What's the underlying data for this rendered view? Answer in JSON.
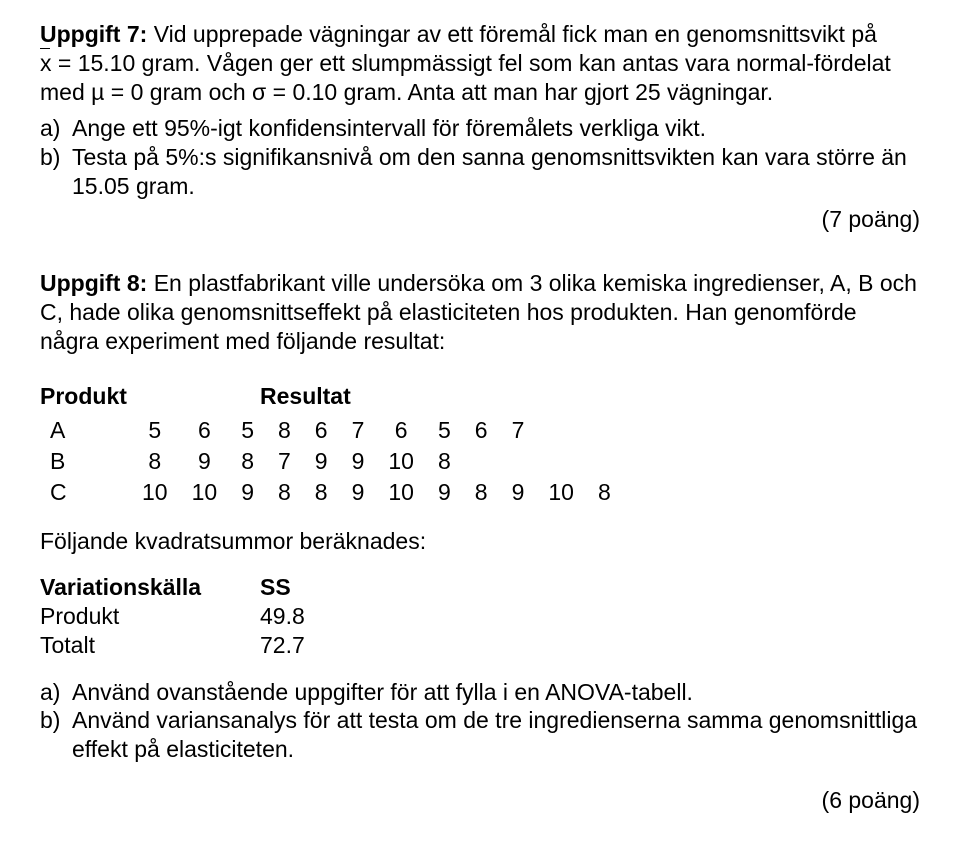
{
  "u7": {
    "title": "Uppgift 7:",
    "body_pre": "Vid upprepade vägningar av ett föremål fick man en genomsnittsvikt på ",
    "xbar": "x",
    "body_mid": " = 15.10 gram. Vågen ger ett slumpmässigt fel som kan antas vara normal-fördelat med µ = 0 gram och σ = 0.10 gram. Anta att man har gjort 25 vägningar.",
    "a_lbl": "a)",
    "a": "Ange ett 95%-igt konfidensintervall för föremålets verkliga vikt.",
    "b_lbl": "b)",
    "b": "Testa på 5%:s signifikansnivå om den sanna genomsnittsvikten kan vara större än 15.05 gram.",
    "points": "(7 poäng)"
  },
  "u8": {
    "title": "Uppgift 8:",
    "intro": "En plastfabrikant ville undersöka om 3 olika kemiska ingredienser, A, B och C, hade olika genomsnittseffekt på elasticiteten hos produkten. Han genomförde några experiment med följande resultat:",
    "col_product": "Produkt",
    "col_result": "Resultat",
    "rows": [
      {
        "p": "A",
        "v": [
          "5",
          "6",
          "5",
          "8",
          "6",
          "7",
          "6",
          "5",
          "6",
          "7",
          "",
          ""
        ]
      },
      {
        "p": "B",
        "v": [
          "8",
          "9",
          "8",
          "7",
          "9",
          "9",
          "10",
          "8",
          "",
          "",
          "",
          ""
        ]
      },
      {
        "p": "C",
        "v": [
          "10",
          "10",
          "9",
          "8",
          "8",
          "9",
          "10",
          "9",
          "8",
          "9",
          "10",
          "8"
        ]
      }
    ],
    "ss_intro": "Följande kvadratsummor beräknades:",
    "ss_col1": "Variationskälla",
    "ss_col2": "SS",
    "ss_rows": [
      {
        "k": "Produkt",
        "v": "49.8"
      },
      {
        "k": "Totalt",
        "v": "72.7"
      }
    ],
    "a_lbl": "a)",
    "a": "Använd ovanstående uppgifter för att fylla i en ANOVA-tabell.",
    "b_lbl": "b)",
    "b": "Använd variansanalys för att testa om de tre ingredienserna samma genomsnittliga effekt på elasticiteten.",
    "points": "(6 poäng)"
  }
}
